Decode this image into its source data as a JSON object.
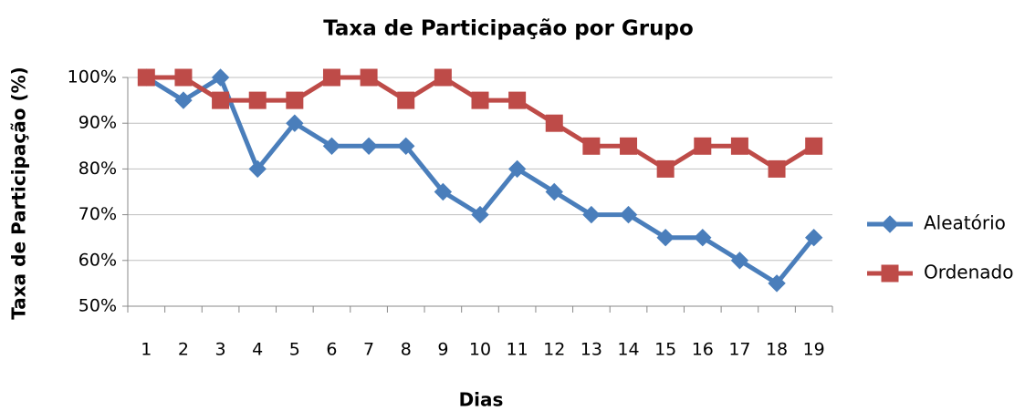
{
  "chart_data": {
    "type": "line",
    "title": "Taxa de Participação por Grupo",
    "x_label": "Dias",
    "y_label": "Taxa de Participação (%)",
    "categories": [
      "1",
      "2",
      "3",
      "4",
      "5",
      "6",
      "7",
      "8",
      "9",
      "10",
      "11",
      "12",
      "13",
      "14",
      "15",
      "16",
      "17",
      "18",
      "19"
    ],
    "series": [
      {
        "name": "Aleatório",
        "color": "#4a7ebb",
        "marker": "diamond",
        "values": [
          100,
          95,
          100,
          80,
          90,
          85,
          85,
          85,
          75,
          70,
          80,
          75,
          70,
          70,
          65,
          65,
          60,
          55,
          65
        ]
      },
      {
        "name": "Ordenado",
        "color": "#be4b48",
        "marker": "square",
        "values": [
          100,
          100,
          95,
          95,
          95,
          100,
          100,
          95,
          100,
          95,
          95,
          90,
          85,
          85,
          80,
          85,
          85,
          80,
          85
        ]
      }
    ],
    "ylim": [
      50,
      100
    ],
    "yticks": [
      {
        "value": 50,
        "label": "50%"
      },
      {
        "value": 60,
        "label": "60%"
      },
      {
        "value": 70,
        "label": "70%"
      },
      {
        "value": 80,
        "label": "80%"
      },
      {
        "value": 90,
        "label": "90%"
      },
      {
        "value": 100,
        "label": "100%"
      }
    ],
    "grid": true,
    "legend": "right"
  }
}
